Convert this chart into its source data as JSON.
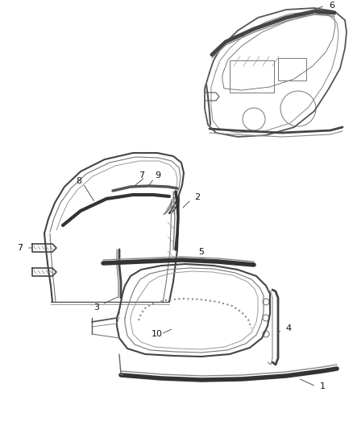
{
  "bg_color": "#ffffff",
  "line_color": "#555555",
  "dark_color": "#333333",
  "figsize": [
    4.38,
    5.33
  ],
  "dpi": 100
}
